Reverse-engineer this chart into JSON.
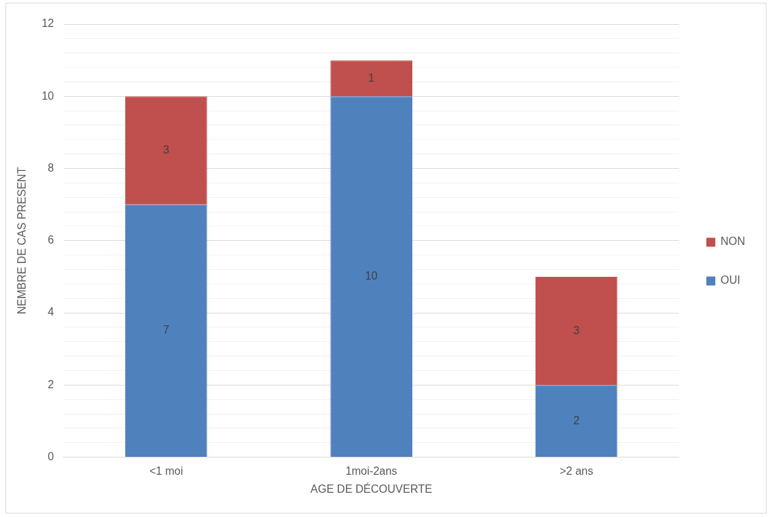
{
  "chart_data": {
    "type": "bar",
    "xlabel": "AGE DE DÉCOUVERTE",
    "ylabel": "NEMBRE DE CAS PRESENT",
    "categories": [
      "<1 moi",
      "1moi-2ans",
      ">2 ans"
    ],
    "series": [
      {
        "name": "OUI",
        "color": "#4f81bd",
        "values": [
          7,
          10,
          2
        ]
      },
      {
        "name": "NON",
        "color": "#c0504d",
        "values": [
          3,
          1,
          3
        ]
      }
    ],
    "stacked": true,
    "data_labels": true,
    "legend": "right",
    "grid": "y",
    "ylim": [
      0,
      12
    ],
    "yticks": [
      0,
      {
        "value": 0.4,
        "label": null
      },
      {
        "value": 0.8,
        "label": null
      },
      {
        "value": 1.2,
        "label": null
      },
      {
        "value": 1.6,
        "label": null
      },
      2,
      {
        "value": 2.4,
        "label": null
      },
      {
        "value": 2.8,
        "label": null
      },
      {
        "value": 3.2,
        "label": null
      },
      {
        "value": 3.6,
        "label": null
      },
      4,
      {
        "value": 4.4,
        "label": null
      },
      {
        "value": 4.8,
        "label": null
      },
      {
        "value": 5.2,
        "label": null
      },
      {
        "value": 5.6,
        "label": null
      },
      6,
      {
        "value": 6.4,
        "label": null
      },
      {
        "value": 6.8,
        "label": null
      },
      {
        "value": 7.2,
        "label": null
      },
      {
        "value": 7.6,
        "label": null
      },
      8,
      {
        "value": 8.4,
        "label": null
      },
      {
        "value": 8.8,
        "label": null
      },
      {
        "value": 9.2,
        "label": null
      },
      {
        "value": 9.6,
        "label": null
      },
      10,
      {
        "value": 10.4,
        "label": null
      },
      {
        "value": 10.8,
        "label": null
      },
      {
        "value": 11.2,
        "label": null
      },
      {
        "value": 11.6,
        "label": null
      },
      12
    ]
  }
}
